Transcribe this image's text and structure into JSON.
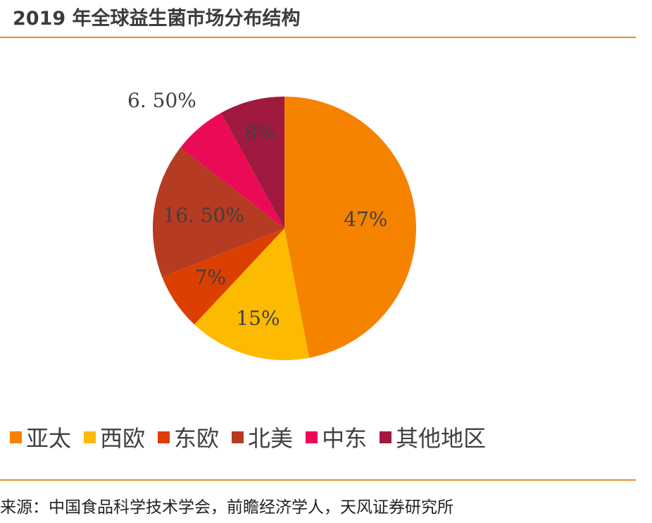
{
  "title": "2019 年全球益生菌市场分布结构",
  "source": "来源：中国食品科学技术学会，前瞻经济学人，天风证券研究所",
  "chart_data": {
    "type": "pie",
    "title": "2019 年全球益生菌市场分布结构",
    "legend_position": "bottom",
    "slices": [
      {
        "name": "亚太",
        "value": 47,
        "label": "47%",
        "color": "#f58300"
      },
      {
        "name": "西欧",
        "value": 15,
        "label": "15%",
        "color": "#fcbb00"
      },
      {
        "name": "东欧",
        "value": 7,
        "label": "7%",
        "color": "#dc3f02"
      },
      {
        "name": "北美",
        "value": 16.5,
        "label": "16. 50%",
        "color": "#b53b22"
      },
      {
        "name": "中东",
        "value": 6.5,
        "label": "6. 50%",
        "color": "#ea0a56"
      },
      {
        "name": "其他地区",
        "value": 8,
        "label": "8%",
        "color": "#a0193f"
      }
    ]
  }
}
